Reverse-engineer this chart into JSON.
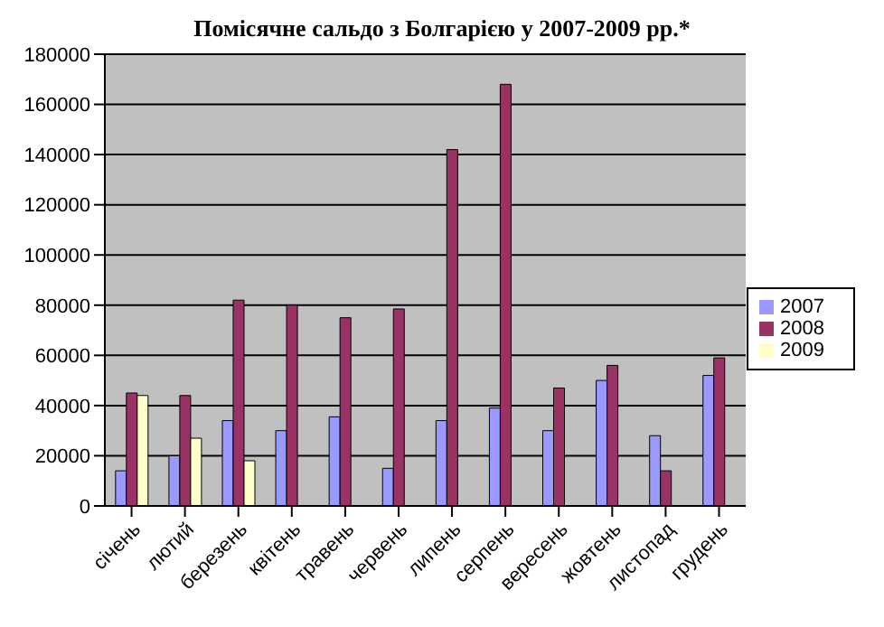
{
  "chart_data": {
    "type": "bar",
    "title": "Помісячне сальдо з Болгарією у 2007-2009 рр.*",
    "categories": [
      "січень",
      "лютий",
      "березень",
      "квітень",
      "травень",
      "червень",
      "липень",
      "серпень",
      "вересень",
      "жовтень",
      "листопад",
      "грудень"
    ],
    "series": [
      {
        "name": "2007",
        "color": "#9999ff",
        "values": [
          14000,
          20000,
          34000,
          30000,
          35500,
          15000,
          34000,
          39000,
          30000,
          50000,
          28000,
          52000
        ]
      },
      {
        "name": "2008",
        "color": "#993366",
        "values": [
          45000,
          44000,
          82000,
          80000,
          75000,
          78500,
          142000,
          168000,
          47000,
          56000,
          14000,
          59000
        ]
      },
      {
        "name": "2009",
        "color": "#ffffcc",
        "values": [
          44000,
          27000,
          18000,
          null,
          null,
          null,
          null,
          null,
          null,
          null,
          null,
          null
        ]
      }
    ],
    "ylim": [
      0,
      180000
    ],
    "yticks": [
      0,
      20000,
      40000,
      60000,
      80000,
      100000,
      120000,
      140000,
      160000,
      180000
    ],
    "grid": "y",
    "legend": "right"
  }
}
